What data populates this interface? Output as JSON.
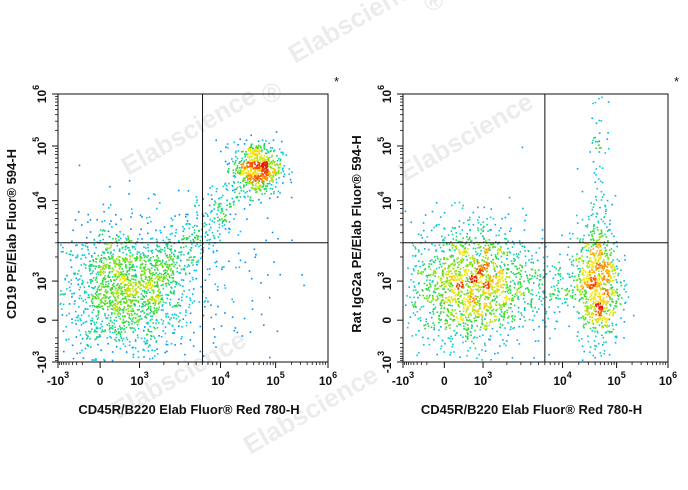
{
  "watermark": "Elabscience",
  "watermark_mark": "®",
  "chart_data": [
    {
      "type": "scatter",
      "subtype": "flow-cytometry density dot plot",
      "xlabel": "CD45R/B220 Elab Fluor® Red 780-H",
      "ylabel": "CD19 PE/Elab Fluor® 594-H",
      "annotation": "*",
      "x_ticks": [
        {
          "base": "-10",
          "exp": "3",
          "value": -1000
        },
        {
          "base": "0",
          "exp": "",
          "value": 0
        },
        {
          "base": "10",
          "exp": "3",
          "value": 1000
        },
        {
          "base": "10",
          "exp": "4",
          "value": 10000
        },
        {
          "base": "10",
          "exp": "5",
          "value": 100000
        },
        {
          "base": "10",
          "exp": "6",
          "value": 1000000
        }
      ],
      "y_ticks": [
        {
          "base": "-10",
          "exp": "3",
          "value": -1000
        },
        {
          "base": "0",
          "exp": "",
          "value": 0
        },
        {
          "base": "10",
          "exp": "3",
          "value": 1000
        },
        {
          "base": "10",
          "exp": "4",
          "value": 10000
        },
        {
          "base": "10",
          "exp": "5",
          "value": 100000
        },
        {
          "base": "10",
          "exp": "6",
          "value": 1000000
        }
      ],
      "quadrant_gate": {
        "x": 6000,
        "y": 3000
      },
      "populations": [
        {
          "name": "CD45R- CD19-",
          "center_x": 300,
          "center_y": 500,
          "spread_x": 0.11,
          "spread_y": 0.12,
          "count": 1400
        },
        {
          "name": "CD45R+ CD19+",
          "center_x": 45000,
          "center_y": 40000,
          "spread_x": 0.045,
          "spread_y": 0.05,
          "count": 650
        },
        {
          "name": "transitional",
          "center_x": 3000,
          "center_y": 3000,
          "spread_x": 0.2,
          "spread_y": 0.2,
          "count": 350
        },
        {
          "name": "scatter",
          "center_x": 2000,
          "center_y": 800,
          "spread_x": 0.2,
          "spread_y": 0.15,
          "count": 300
        }
      ]
    },
    {
      "type": "scatter",
      "subtype": "flow-cytometry density dot plot",
      "xlabel": "CD45R/B220 Elab Fluor® Red 780-H",
      "ylabel": "Rat IgG2a PE/Elab Fluor® 594-H",
      "annotation": "*",
      "x_ticks": [
        {
          "base": "-10",
          "exp": "3",
          "value": -1000
        },
        {
          "base": "0",
          "exp": "",
          "value": 0
        },
        {
          "base": "10",
          "exp": "3",
          "value": 1000
        },
        {
          "base": "10",
          "exp": "4",
          "value": 10000
        },
        {
          "base": "10",
          "exp": "5",
          "value": 100000
        },
        {
          "base": "10",
          "exp": "6",
          "value": 1000000
        }
      ],
      "y_ticks": [
        {
          "base": "-10",
          "exp": "3",
          "value": -1000
        },
        {
          "base": "0",
          "exp": "",
          "value": 0
        },
        {
          "base": "10",
          "exp": "3",
          "value": 1000
        },
        {
          "base": "10",
          "exp": "4",
          "value": 10000
        },
        {
          "base": "10",
          "exp": "5",
          "value": 100000
        },
        {
          "base": "10",
          "exp": "6",
          "value": 1000000
        }
      ],
      "quadrant_gate": {
        "x": 6000,
        "y": 3000
      },
      "populations": [
        {
          "name": "CD45R-",
          "center_x": 300,
          "center_y": 800,
          "spread_x": 0.11,
          "spread_y": 0.12,
          "count": 1400
        },
        {
          "name": "CD45R+",
          "center_x": 45000,
          "center_y": 900,
          "spread_x": 0.04,
          "spread_y": 0.12,
          "count": 750
        },
        {
          "name": "bridge",
          "center_x": 5000,
          "center_y": 900,
          "spread_x": 0.25,
          "spread_y": 0.08,
          "count": 420
        },
        {
          "name": "CD45R+ streak",
          "center_x": 45000,
          "center_y": 20000,
          "spread_x": 0.02,
          "spread_y": 0.3,
          "count": 90
        }
      ]
    }
  ]
}
